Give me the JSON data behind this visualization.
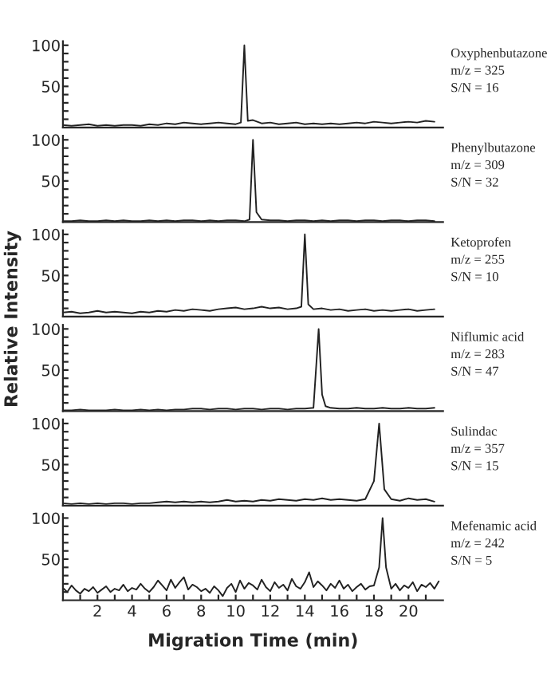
{
  "chart_data": [
    {
      "type": "line",
      "xlim": [
        0,
        22
      ],
      "ylim": [
        0,
        105
      ],
      "tick_labels": "y",
      "annotations": [
        "Oxyphenbutazone",
        "m/z = 325",
        "S/N = 16"
      ],
      "yticks": [
        {
          "value": 10,
          "label": null
        },
        {
          "value": 20,
          "label": null
        },
        {
          "value": 30,
          "label": null
        },
        {
          "value": 40,
          "label": null
        },
        50,
        {
          "value": 60,
          "label": null
        },
        {
          "value": 70,
          "label": null
        },
        {
          "value": 80,
          "label": null
        },
        {
          "value": 90,
          "label": null
        },
        100
      ],
      "series": [
        {
          "color": "#222222",
          "x": [
            0,
            0.5,
            1,
            1.5,
            2,
            2.5,
            3,
            3.5,
            4,
            4.5,
            5,
            5.5,
            6,
            6.5,
            7,
            7.5,
            8,
            8.5,
            9,
            9.5,
            10,
            10.3,
            10.5,
            10.7,
            11,
            11.5,
            12,
            12.5,
            13,
            13.5,
            14,
            14.5,
            15,
            15.5,
            16,
            16.5,
            17,
            17.5,
            18,
            18.5,
            19,
            19.5,
            20,
            20.5,
            21,
            21.5
          ],
          "values": [
            3,
            2,
            3,
            4,
            2,
            3,
            2,
            3,
            3,
            2,
            4,
            3,
            5,
            4,
            6,
            5,
            4,
            5,
            6,
            5,
            4,
            6,
            100,
            8,
            9,
            5,
            6,
            4,
            5,
            6,
            4,
            5,
            4,
            5,
            4,
            5,
            6,
            5,
            7,
            6,
            5,
            6,
            7,
            6,
            8,
            7
          ]
        }
      ]
    },
    {
      "type": "line",
      "xlim": [
        0,
        22
      ],
      "ylim": [
        0,
        105
      ],
      "tick_labels": "y",
      "annotations": [
        "Phenylbutazone",
        "m/z = 309",
        "S/N = 32"
      ],
      "yticks": [
        {
          "value": 10,
          "label": null
        },
        {
          "value": 20,
          "label": null
        },
        {
          "value": 30,
          "label": null
        },
        {
          "value": 40,
          "label": null
        },
        50,
        {
          "value": 60,
          "label": null
        },
        {
          "value": 70,
          "label": null
        },
        {
          "value": 80,
          "label": null
        },
        {
          "value": 90,
          "label": null
        },
        100
      ],
      "series": [
        {
          "color": "#222222",
          "x": [
            0,
            0.5,
            1,
            1.5,
            2,
            2.5,
            3,
            3.5,
            4,
            4.5,
            5,
            5.5,
            6,
            6.5,
            7,
            7.5,
            8,
            8.5,
            9,
            9.5,
            10,
            10.5,
            10.8,
            11,
            11.2,
            11.5,
            12,
            12.5,
            13,
            13.5,
            14,
            14.5,
            15,
            15.5,
            16,
            16.5,
            17,
            17.5,
            18,
            18.5,
            19,
            19.5,
            20,
            20.5,
            21,
            21.5
          ],
          "values": [
            1,
            1,
            2,
            1,
            1,
            2,
            1,
            2,
            1,
            1,
            2,
            1,
            2,
            1,
            2,
            2,
            1,
            2,
            1,
            2,
            2,
            1,
            3,
            100,
            12,
            3,
            2,
            2,
            1,
            2,
            2,
            1,
            2,
            1,
            2,
            2,
            1,
            2,
            2,
            1,
            2,
            2,
            1,
            2,
            2,
            1
          ]
        }
      ]
    },
    {
      "type": "line",
      "xlim": [
        0,
        22
      ],
      "ylim": [
        0,
        105
      ],
      "tick_labels": "y",
      "ylabel": "Relative Intensity",
      "annotations": [
        "Ketoprofen",
        "m/z = 255",
        "S/N = 10"
      ],
      "yticks": [
        {
          "value": 10,
          "label": null
        },
        {
          "value": 20,
          "label": null
        },
        {
          "value": 30,
          "label": null
        },
        {
          "value": 40,
          "label": null
        },
        50,
        {
          "value": 60,
          "label": null
        },
        {
          "value": 70,
          "label": null
        },
        {
          "value": 80,
          "label": null
        },
        {
          "value": 90,
          "label": null
        },
        100
      ],
      "series": [
        {
          "color": "#222222",
          "x": [
            0,
            0.5,
            1,
            1.5,
            2,
            2.5,
            3,
            3.5,
            4,
            4.5,
            5,
            5.5,
            6,
            6.5,
            7,
            7.5,
            8,
            8.5,
            9,
            9.5,
            10,
            10.5,
            11,
            11.5,
            12,
            12.5,
            13,
            13.5,
            13.8,
            14,
            14.2,
            14.5,
            15,
            15.5,
            16,
            16.5,
            17,
            17.5,
            18,
            18.5,
            19,
            19.5,
            20,
            20.5,
            21,
            21.5
          ],
          "values": [
            5,
            6,
            4,
            5,
            7,
            5,
            6,
            5,
            4,
            6,
            5,
            7,
            6,
            8,
            7,
            9,
            8,
            7,
            9,
            10,
            11,
            9,
            10,
            12,
            10,
            11,
            9,
            10,
            12,
            100,
            15,
            9,
            10,
            8,
            9,
            7,
            8,
            9,
            7,
            8,
            7,
            8,
            9,
            7,
            8,
            9
          ]
        }
      ]
    },
    {
      "type": "line",
      "xlim": [
        0,
        22
      ],
      "ylim": [
        0,
        105
      ],
      "tick_labels": "y",
      "annotations": [
        "Niflumic acid",
        "m/z = 283",
        "S/N = 47"
      ],
      "yticks": [
        {
          "value": 10,
          "label": null
        },
        {
          "value": 20,
          "label": null
        },
        {
          "value": 30,
          "label": null
        },
        {
          "value": 40,
          "label": null
        },
        50,
        {
          "value": 60,
          "label": null
        },
        {
          "value": 70,
          "label": null
        },
        {
          "value": 80,
          "label": null
        },
        {
          "value": 90,
          "label": null
        },
        100
      ],
      "series": [
        {
          "color": "#222222",
          "x": [
            0,
            0.5,
            1,
            1.5,
            2,
            2.5,
            3,
            3.5,
            4,
            4.5,
            5,
            5.5,
            6,
            6.5,
            7,
            7.5,
            8,
            8.5,
            9,
            9.5,
            10,
            10.5,
            11,
            11.5,
            12,
            12.5,
            13,
            13.5,
            14,
            14.5,
            14.8,
            15,
            15.2,
            15.5,
            16,
            16.5,
            17,
            17.5,
            18,
            18.5,
            19,
            19.5,
            20,
            20.5,
            21,
            21.5
          ],
          "values": [
            1,
            1,
            2,
            1,
            1,
            1,
            2,
            1,
            1,
            2,
            1,
            2,
            1,
            2,
            2,
            3,
            3,
            2,
            3,
            3,
            2,
            3,
            3,
            2,
            3,
            3,
            2,
            3,
            3,
            4,
            100,
            20,
            6,
            4,
            3,
            3,
            4,
            3,
            3,
            4,
            3,
            3,
            4,
            3,
            3,
            4
          ]
        }
      ]
    },
    {
      "type": "line",
      "xlim": [
        0,
        22
      ],
      "ylim": [
        0,
        105
      ],
      "tick_labels": "y",
      "annotations": [
        "Sulindac",
        "m/z = 357",
        "S/N = 15"
      ],
      "yticks": [
        {
          "value": 10,
          "label": null
        },
        {
          "value": 20,
          "label": null
        },
        {
          "value": 30,
          "label": null
        },
        {
          "value": 40,
          "label": null
        },
        50,
        {
          "value": 60,
          "label": null
        },
        {
          "value": 70,
          "label": null
        },
        {
          "value": 80,
          "label": null
        },
        {
          "value": 90,
          "label": null
        },
        100
      ],
      "series": [
        {
          "color": "#222222",
          "x": [
            0,
            0.5,
            1,
            1.5,
            2,
            2.5,
            3,
            3.5,
            4,
            4.5,
            5,
            5.5,
            6,
            6.5,
            7,
            7.5,
            8,
            8.5,
            9,
            9.5,
            10,
            10.5,
            11,
            11.5,
            12,
            12.5,
            13,
            13.5,
            14,
            14.5,
            15,
            15.5,
            16,
            16.5,
            17,
            17.5,
            18,
            18.3,
            18.6,
            19,
            19.5,
            20,
            20.5,
            21,
            21.5
          ],
          "values": [
            3,
            2,
            3,
            2,
            3,
            2,
            3,
            3,
            2,
            3,
            3,
            4,
            5,
            4,
            5,
            4,
            5,
            4,
            5,
            7,
            5,
            6,
            5,
            7,
            6,
            8,
            7,
            6,
            8,
            7,
            9,
            7,
            8,
            7,
            6,
            8,
            30,
            100,
            20,
            8,
            6,
            9,
            7,
            8,
            5
          ]
        }
      ]
    },
    {
      "type": "line",
      "xlim": [
        0,
        22
      ],
      "ylim": [
        0,
        105
      ],
      "xlabel": "Migration Time (min)",
      "annotations": [
        "Mefenamic acid",
        "m/z = 242",
        "S/N = 5"
      ],
      "yticks": [
        {
          "value": 10,
          "label": null
        },
        {
          "value": 20,
          "label": null
        },
        {
          "value": 30,
          "label": null
        },
        {
          "value": 40,
          "label": null
        },
        50,
        {
          "value": 60,
          "label": null
        },
        {
          "value": 70,
          "label": null
        },
        {
          "value": 80,
          "label": null
        },
        {
          "value": 90,
          "label": null
        },
        100
      ],
      "xticks": [
        {
          "value": 1,
          "label": null
        },
        2,
        {
          "value": 3,
          "label": null
        },
        4,
        {
          "value": 5,
          "label": null
        },
        6,
        {
          "value": 7,
          "label": null
        },
        8,
        {
          "value": 9,
          "label": null
        },
        10,
        {
          "value": 11,
          "label": null
        },
        12,
        {
          "value": 13,
          "label": null
        },
        14,
        {
          "value": 15,
          "label": null
        },
        16,
        {
          "value": 17,
          "label": null
        },
        18,
        {
          "value": 19,
          "label": null
        },
        20,
        {
          "value": 21,
          "label": null
        }
      ],
      "series": [
        {
          "color": "#222222",
          "x": [
            0,
            0.25,
            0.5,
            0.75,
            1,
            1.25,
            1.5,
            1.75,
            2,
            2.25,
            2.5,
            2.75,
            3,
            3.25,
            3.5,
            3.75,
            4,
            4.25,
            4.5,
            4.75,
            5,
            5.25,
            5.5,
            5.75,
            6,
            6.25,
            6.5,
            6.75,
            7,
            7.25,
            7.5,
            7.75,
            8,
            8.25,
            8.5,
            8.75,
            9,
            9.25,
            9.5,
            9.75,
            10,
            10.25,
            10.5,
            10.75,
            11,
            11.25,
            11.5,
            11.75,
            12,
            12.25,
            12.5,
            12.75,
            13,
            13.25,
            13.5,
            13.75,
            14,
            14.25,
            14.5,
            14.75,
            15,
            15.25,
            15.5,
            15.75,
            16,
            16.25,
            16.5,
            16.75,
            17,
            17.25,
            17.5,
            17.75,
            18,
            18.3,
            18.5,
            18.7,
            19,
            19.25,
            19.5,
            19.75,
            20,
            20.25,
            20.5,
            20.75,
            21,
            21.25,
            21.5,
            21.75
          ],
          "values": [
            15,
            10,
            18,
            12,
            8,
            14,
            11,
            16,
            9,
            13,
            17,
            10,
            14,
            12,
            19,
            11,
            15,
            13,
            20,
            14,
            10,
            16,
            24,
            18,
            12,
            25,
            15,
            22,
            28,
            13,
            19,
            16,
            11,
            14,
            9,
            17,
            12,
            5,
            15,
            20,
            10,
            24,
            14,
            21,
            18,
            13,
            25,
            16,
            11,
            22,
            15,
            19,
            12,
            26,
            17,
            14,
            22,
            34,
            16,
            23,
            18,
            12,
            20,
            15,
            24,
            14,
            19,
            11,
            16,
            20,
            13,
            17,
            18,
            40,
            100,
            40,
            14,
            20,
            12,
            18,
            15,
            22,
            11,
            19,
            16,
            21,
            14,
            23
          ]
        }
      ]
    }
  ]
}
